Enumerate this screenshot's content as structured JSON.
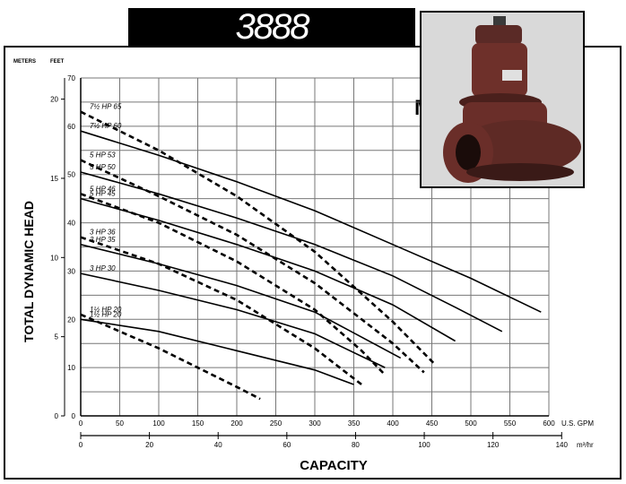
{
  "banner": {
    "title": "3888"
  },
  "header": {
    "meters_label": "METERS",
    "feet_label": "FEET",
    "corner_glyph": "M"
  },
  "photo": {
    "icon": "submersible-pump-photo"
  },
  "chart_data": {
    "type": "line",
    "title": "",
    "xlabel": "CAPACITY",
    "ylabel": "TOTAL DYNAMIC HEAD",
    "xlim": [
      0,
      600
    ],
    "ylim": [
      0,
      70
    ],
    "grid": true,
    "x_ticks": [
      0,
      50,
      100,
      150,
      200,
      250,
      300,
      350,
      400,
      450,
      500,
      550,
      600
    ],
    "x_tick_labels": [
      "0",
      "50",
      "100",
      "150",
      "200",
      "250",
      "300",
      "350",
      "400",
      "450",
      "500",
      "550",
      "600"
    ],
    "x_unit": "U.S. GPM",
    "x2_ticks": [
      0,
      20,
      40,
      60,
      80,
      100,
      120,
      140
    ],
    "x2_tick_labels": [
      "0",
      "20",
      "40",
      "60",
      "80",
      "100",
      "120",
      "140"
    ],
    "x2_unit": "m³/hr",
    "y_ticks": [
      0,
      10,
      20,
      30,
      40,
      50,
      60,
      70
    ],
    "y_tick_labels": [
      "0",
      "10",
      "20",
      "30",
      "40",
      "50",
      "60",
      "70"
    ],
    "y2_ticks": [
      0,
      5,
      10,
      15,
      20
    ],
    "y2_tick_labels": [
      "0",
      "5",
      "10",
      "15",
      "20"
    ],
    "series": [
      {
        "name": "7½ HP 60",
        "style": "solid",
        "x": [
          0,
          100,
          200,
          300,
          400,
          500,
          590
        ],
        "y": [
          59,
          54,
          48.5,
          42.5,
          35.5,
          28.5,
          21.5
        ]
      },
      {
        "name": "5 HP 50",
        "style": "solid",
        "x": [
          0,
          100,
          200,
          300,
          400,
          480,
          540
        ],
        "y": [
          50.5,
          46,
          41,
          35.5,
          29,
          22.5,
          17.5
        ]
      },
      {
        "name": "5 HP 45",
        "style": "solid",
        "x": [
          0,
          100,
          200,
          300,
          400,
          480
        ],
        "y": [
          45,
          40.5,
          35.5,
          30,
          23,
          15.5
        ]
      },
      {
        "name": "3 HP 35",
        "style": "solid",
        "x": [
          0,
          100,
          200,
          300,
          410
        ],
        "y": [
          35.5,
          31.5,
          27,
          21.5,
          12
        ]
      },
      {
        "name": "3 HP 30",
        "style": "solid",
        "x": [
          0,
          100,
          200,
          300,
          390
        ],
        "y": [
          29.5,
          26,
          22,
          17,
          10
        ]
      },
      {
        "name": "1½ HP 20",
        "style": "solid",
        "x": [
          0,
          100,
          200,
          300,
          350
        ],
        "y": [
          20,
          17.5,
          13.5,
          9.5,
          6.5
        ]
      },
      {
        "name": "7½ HP 65",
        "style": "dashed",
        "x": [
          0,
          100,
          200,
          300,
          400,
          455
        ],
        "y": [
          63,
          55,
          45.5,
          34,
          19.5,
          10.5
        ]
      },
      {
        "name": "5 HP 53",
        "style": "dashed",
        "x": [
          0,
          100,
          200,
          300,
          400,
          440
        ],
        "y": [
          53,
          45.5,
          37.5,
          27.5,
          15,
          9
        ]
      },
      {
        "name": "5 HP 46",
        "style": "dashed",
        "x": [
          0,
          100,
          200,
          300,
          360,
          390
        ],
        "y": [
          46,
          40,
          32,
          22,
          13.5,
          8.5
        ]
      },
      {
        "name": "3 HP 36",
        "style": "dashed",
        "x": [
          0,
          100,
          200,
          300,
          360
        ],
        "y": [
          37,
          31.5,
          24,
          14,
          6.5
        ]
      },
      {
        "name": "1½ HP 20 dashed",
        "style": "dashed",
        "x": [
          0,
          100,
          200,
          230
        ],
        "y": [
          21,
          14,
          6,
          3.5
        ]
      }
    ]
  }
}
